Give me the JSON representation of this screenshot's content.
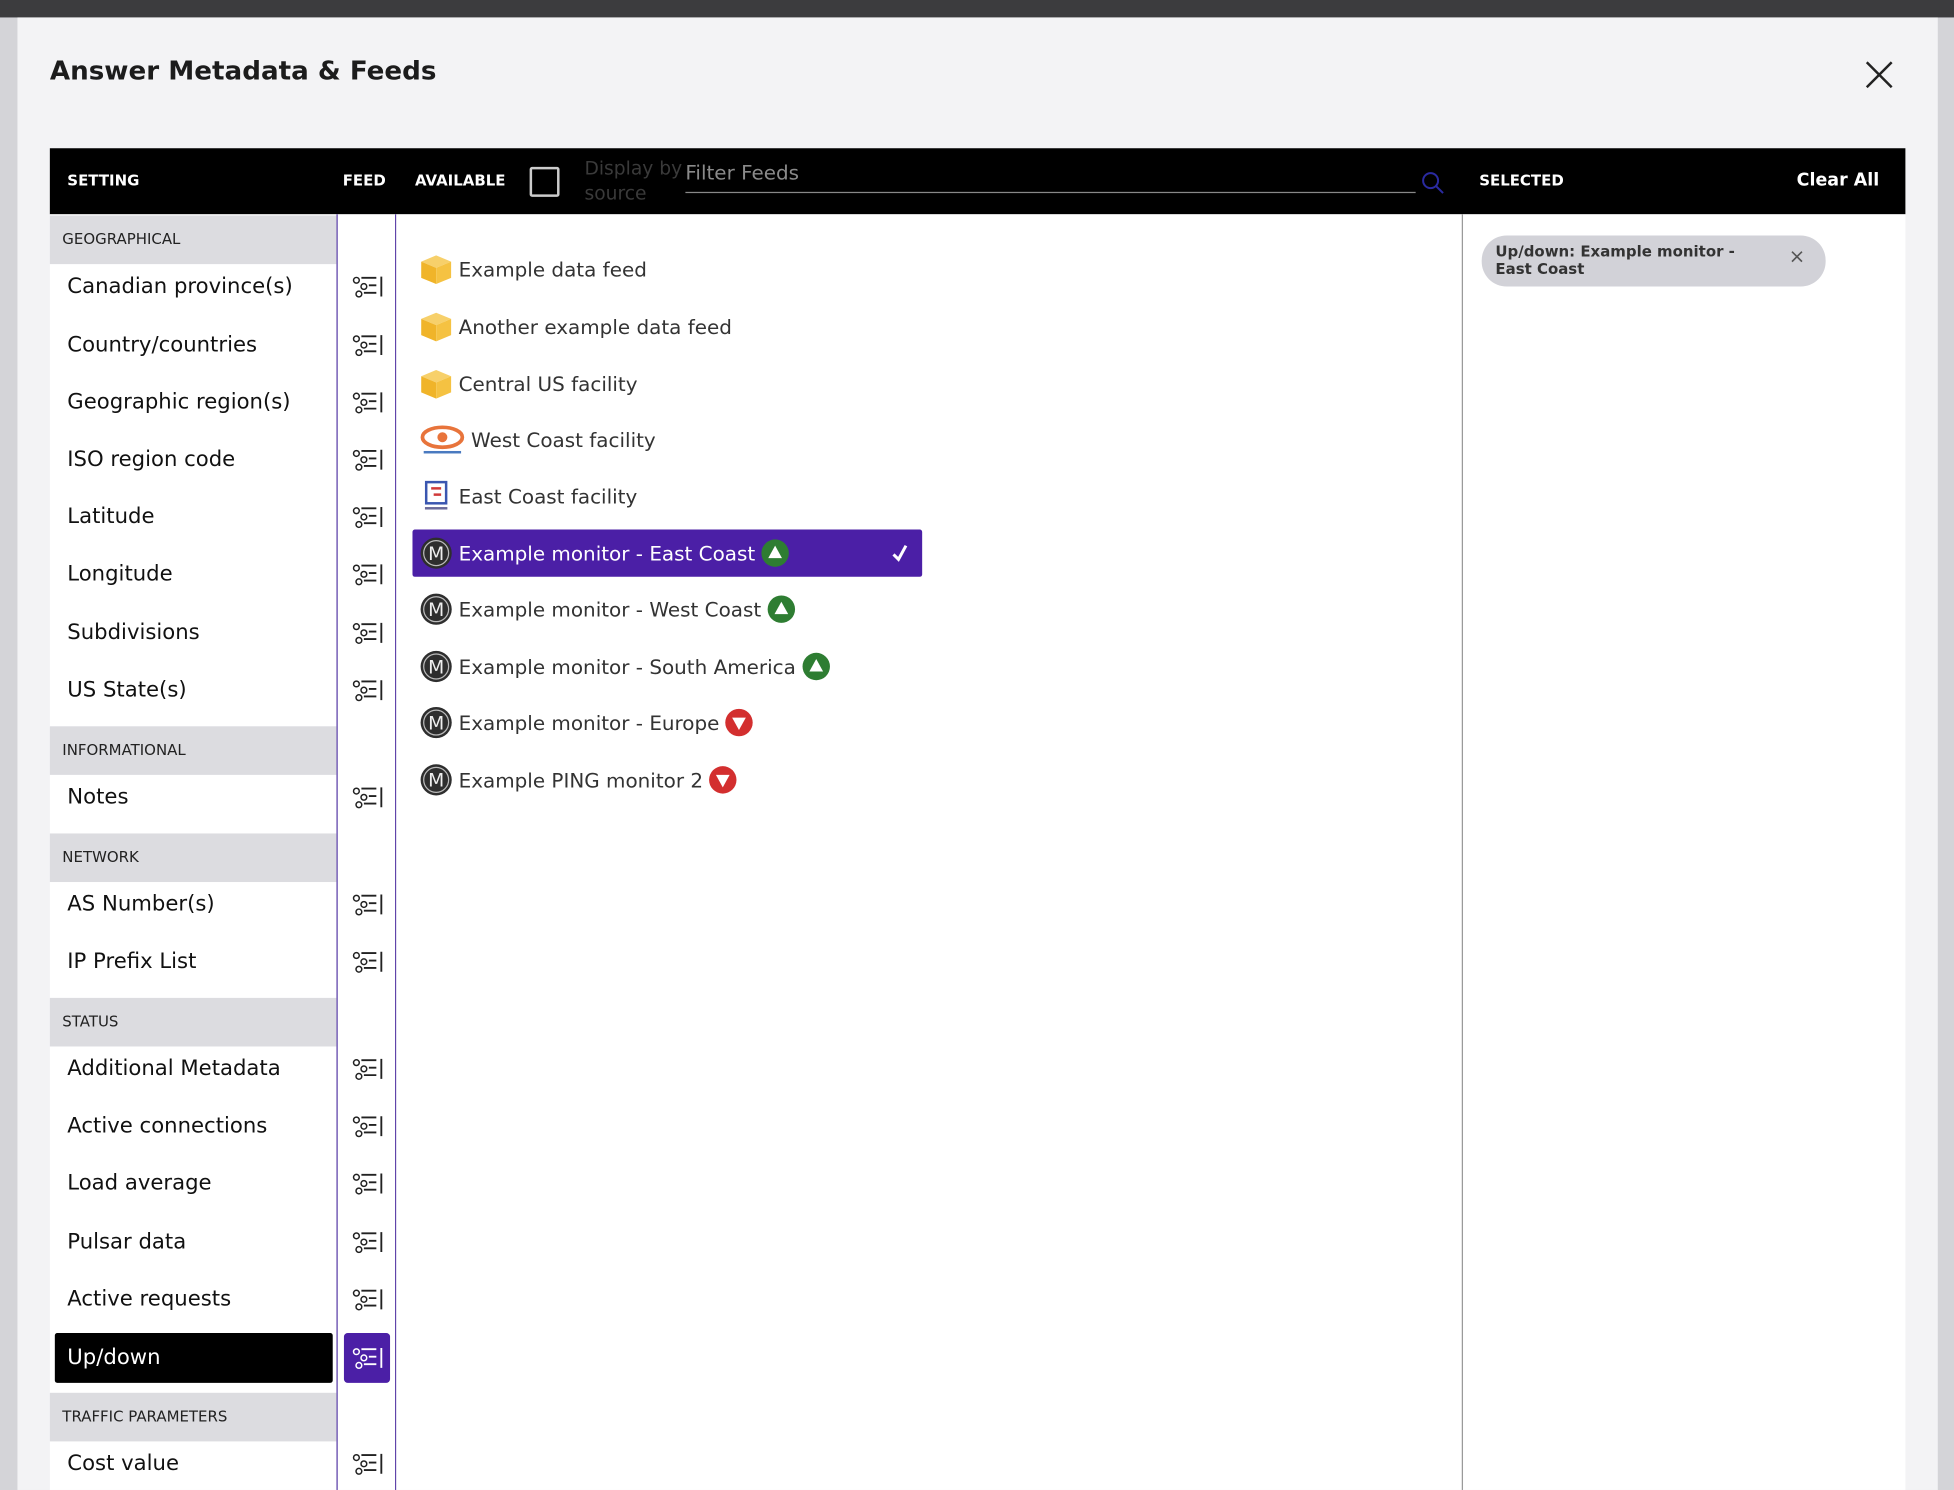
{
  "header": {
    "title": "Answer Metadata & Feeds"
  },
  "toolbar": {
    "setting": "SETTING",
    "feed": "FEED",
    "available": "AVAILABLE",
    "display_by_source": "Display by source",
    "filter_placeholder": "Filter Feeds",
    "selected": "SELECTED",
    "clear_all": "Clear All"
  },
  "settings": [
    {
      "section": "GEOGRAPHICAL",
      "items": [
        "Canadian province(s)",
        "Country/countries",
        "Geographic region(s)",
        "ISO region code",
        "Latitude",
        "Longitude",
        "Subdivisions",
        "US State(s)"
      ]
    },
    {
      "section": "INFORMATIONAL",
      "items": [
        "Notes"
      ]
    },
    {
      "section": "NETWORK",
      "items": [
        "AS Number(s)",
        "IP Prefix List"
      ]
    },
    {
      "section": "STATUS",
      "items": [
        "Additional Metadata",
        "Active connections",
        "Load average",
        "Pulsar data",
        "Active requests",
        "Up/down"
      ]
    },
    {
      "section": "TRAFFIC PARAMETERS",
      "items": [
        "Cost value"
      ]
    }
  ],
  "feeds": [
    "Example data feed",
    "Another example data feed",
    "Central US facility",
    "West Coast facility",
    "East Coast facility",
    "Example monitor - East Coast",
    "Example monitor - West Coast",
    "Example monitor - South America",
    "Example monitor - Europe",
    "Example PING monitor 2"
  ],
  "selected": [
    "Up/down:  Example monitor - East Coast"
  ]
}
